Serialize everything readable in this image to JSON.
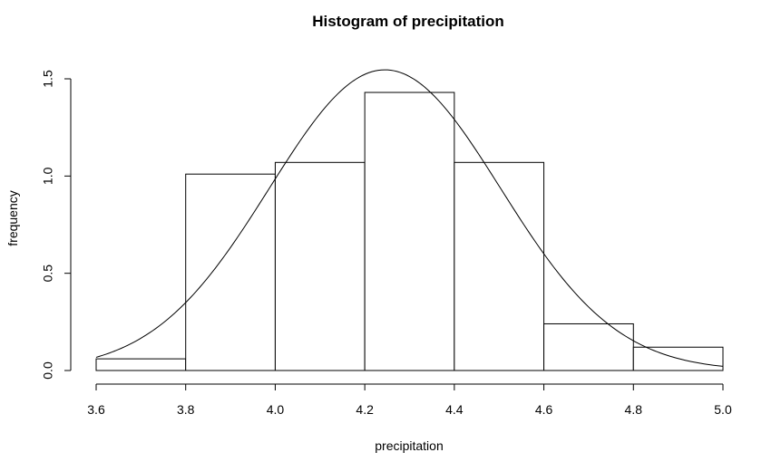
{
  "chart_data": {
    "type": "bar",
    "title": "Histogram of precipitation",
    "xlabel": "precipitation",
    "ylabel": "frequency",
    "bins": [
      {
        "x0": 3.6,
        "x1": 3.8,
        "value": 0.06
      },
      {
        "x0": 3.8,
        "x1": 4.0,
        "value": 1.01
      },
      {
        "x0": 4.0,
        "x1": 4.2,
        "value": 1.07
      },
      {
        "x0": 4.2,
        "x1": 4.4,
        "value": 1.43
      },
      {
        "x0": 4.4,
        "x1": 4.6,
        "value": 1.07
      },
      {
        "x0": 4.6,
        "x1": 4.8,
        "value": 0.24
      },
      {
        "x0": 4.8,
        "x1": 5.0,
        "value": 0.12
      }
    ],
    "density_curve": {
      "type": "normal",
      "mean": 4.245,
      "sd": 0.258
    },
    "xlim": [
      3.6,
      5.0
    ],
    "ylim": [
      0,
      1.5
    ],
    "x_ticks": [
      3.6,
      3.8,
      4.0,
      4.2,
      4.4,
      4.6,
      4.8,
      5.0
    ],
    "x_tick_labels": [
      "3.6",
      "3.8",
      "4.0",
      "4.2",
      "4.4",
      "4.6",
      "4.8",
      "5.0"
    ],
    "y_ticks": [
      0,
      0.5,
      1.0,
      1.5
    ],
    "y_tick_labels": [
      "0.0",
      "0.5",
      "1.0",
      "1.5"
    ],
    "grid": false,
    "bar_fill": "#ffffff",
    "stroke_color": "#000000"
  }
}
